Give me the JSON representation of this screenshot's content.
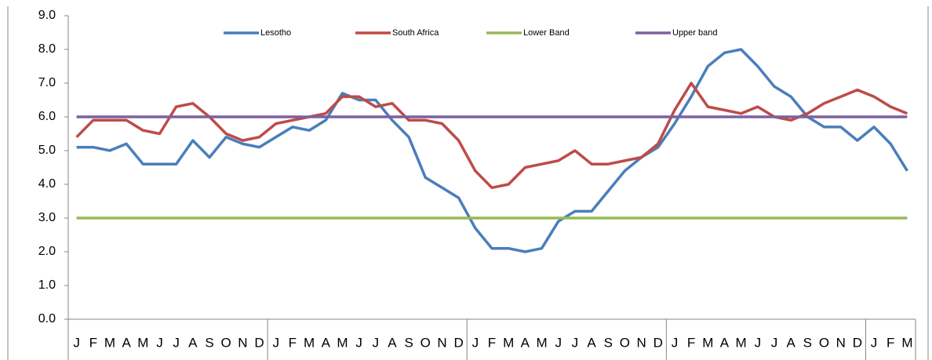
{
  "chart_data": {
    "type": "line",
    "categories": [
      "J",
      "F",
      "M",
      "A",
      "M",
      "J",
      "J",
      "A",
      "S",
      "O",
      "N",
      "D",
      "J",
      "F",
      "M",
      "A",
      "M",
      "J",
      "J",
      "A",
      "S",
      "O",
      "N",
      "D",
      "J",
      "F",
      "M",
      "A",
      "M",
      "J",
      "J",
      "A",
      "S",
      "O",
      "N",
      "D",
      "J",
      "F",
      "M",
      "A",
      "M",
      "J",
      "J",
      "A",
      "S",
      "O",
      "N",
      "D",
      "J",
      "F",
      "M"
    ],
    "series": [
      {
        "name": "Lesotho",
        "color": "#4a7ebb",
        "values": [
          5.1,
          5.1,
          5.0,
          5.2,
          4.6,
          4.6,
          4.6,
          5.3,
          4.8,
          5.4,
          5.2,
          5.1,
          5.4,
          5.7,
          5.6,
          5.9,
          6.7,
          6.5,
          6.5,
          5.9,
          5.4,
          4.2,
          3.9,
          3.6,
          2.7,
          2.1,
          2.1,
          2.0,
          2.1,
          2.9,
          3.2,
          3.2,
          3.8,
          4.4,
          4.8,
          5.1,
          5.8,
          6.6,
          7.5,
          7.9,
          8.0,
          7.5,
          6.9,
          6.6,
          6.0,
          5.7,
          5.7,
          5.3,
          5.7,
          5.2,
          4.4
        ]
      },
      {
        "name": "South Africa",
        "color": "#be4b48",
        "values": [
          5.4,
          5.9,
          5.9,
          5.9,
          5.6,
          5.5,
          6.3,
          6.4,
          6.0,
          5.5,
          5.3,
          5.4,
          5.8,
          5.9,
          6.0,
          6.1,
          6.6,
          6.6,
          6.3,
          6.4,
          5.9,
          5.9,
          5.8,
          5.3,
          4.4,
          3.9,
          4.0,
          4.5,
          4.6,
          4.7,
          5.0,
          4.6,
          4.6,
          4.7,
          4.8,
          5.2,
          6.2,
          7.0,
          6.3,
          6.2,
          6.1,
          6.3,
          6.0,
          5.9,
          6.1,
          6.4,
          6.6,
          6.8,
          6.6,
          6.3,
          6.1
        ]
      },
      {
        "name": "Lower Band",
        "color": "#98b954",
        "values": [
          3,
          3,
          3,
          3,
          3,
          3,
          3,
          3,
          3,
          3,
          3,
          3,
          3,
          3,
          3,
          3,
          3,
          3,
          3,
          3,
          3,
          3,
          3,
          3,
          3,
          3,
          3,
          3,
          3,
          3,
          3,
          3,
          3,
          3,
          3,
          3,
          3,
          3,
          3,
          3,
          3,
          3,
          3,
          3,
          3,
          3,
          3,
          3,
          3,
          3,
          3
        ]
      },
      {
        "name": "Upper band",
        "color": "#7d60a0",
        "values": [
          6,
          6,
          6,
          6,
          6,
          6,
          6,
          6,
          6,
          6,
          6,
          6,
          6,
          6,
          6,
          6,
          6,
          6,
          6,
          6,
          6,
          6,
          6,
          6,
          6,
          6,
          6,
          6,
          6,
          6,
          6,
          6,
          6,
          6,
          6,
          6,
          6,
          6,
          6,
          6,
          6,
          6,
          6,
          6,
          6,
          6,
          6,
          6,
          6,
          6,
          6
        ]
      }
    ],
    "ylim": [
      0,
      9
    ],
    "yticks": [
      {
        "value": 0,
        "label": "0.0"
      },
      {
        "value": 1,
        "label": "1.0"
      },
      {
        "value": 2,
        "label": "2.0"
      },
      {
        "value": 3,
        "label": "3.0"
      },
      {
        "value": 4,
        "label": "4.0"
      },
      {
        "value": 5,
        "label": "5.0"
      },
      {
        "value": 6,
        "label": "6.0"
      },
      {
        "value": 7,
        "label": "7.0"
      },
      {
        "value": 8,
        "label": "8.0"
      },
      {
        "value": 9,
        "label": "9.0"
      }
    ],
    "legend": "top",
    "grid": false
  }
}
